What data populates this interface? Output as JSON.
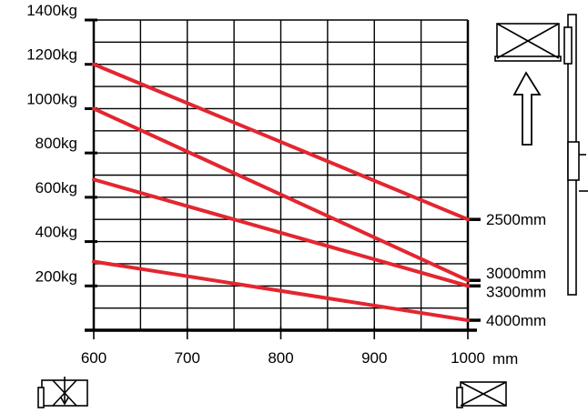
{
  "chart_data": {
    "type": "line",
    "xlabel": "",
    "ylabel": "",
    "x_unit_label": "mm",
    "xlim": [
      600,
      1000
    ],
    "ylim": [
      0,
      1400
    ],
    "x_ticks": [
      600,
      700,
      800,
      900,
      1000
    ],
    "x_tick_labels": [
      "600",
      "700",
      "800",
      "900",
      "1000"
    ],
    "y_ticks": [
      200,
      400,
      600,
      800,
      1000,
      1200,
      1400
    ],
    "y_tick_labels": [
      "200kg",
      "400kg",
      "600kg",
      "800kg",
      "1000kg",
      "1200kg",
      "1400kg"
    ],
    "grid": true,
    "line_color": "#e32630",
    "series": [
      {
        "name": "2500mm",
        "x": [
          600,
          1000
        ],
        "values": [
          1200,
          500
        ]
      },
      {
        "name": "3000mm",
        "x": [
          600,
          1000
        ],
        "values": [
          1000,
          225
        ]
      },
      {
        "name": "3300mm",
        "x": [
          600,
          1000
        ],
        "values": [
          680,
          200
        ]
      },
      {
        "name": "4000mm",
        "x": [
          600,
          1000
        ],
        "values": [
          310,
          45
        ]
      }
    ]
  },
  "icons": {
    "mast": "forklift-mast-icon",
    "load_raised": "pallet-load-icon",
    "lift_arrow": "up-arrow-icon",
    "load_center_bottom_left": "load-center-icon",
    "load_bottom_right": "pallet-load-icon"
  }
}
